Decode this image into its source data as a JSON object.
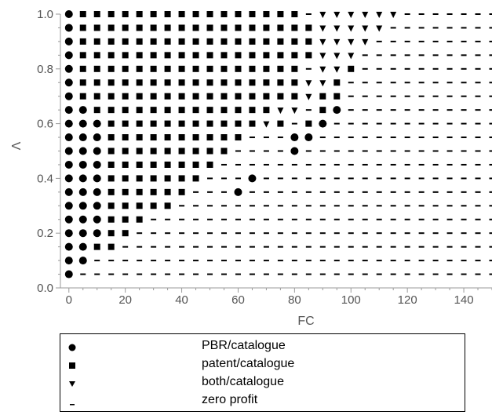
{
  "chart_data": {
    "type": "scatter",
    "xlabel": "FC",
    "ylabel": "Λ",
    "xlim": [
      -3,
      150
    ],
    "ylim": [
      0,
      1.0
    ],
    "xticks": [
      0,
      20,
      40,
      60,
      80,
      100,
      120,
      140
    ],
    "yticks": [
      0.0,
      0.2,
      0.4,
      0.6,
      0.8,
      1.0
    ],
    "ytick_labels": [
      "0.0",
      "0.2",
      "0.4",
      "0.6",
      "0.8",
      "1.0"
    ],
    "grid": false,
    "x_grid": [
      0,
      5,
      10,
      15,
      20,
      25,
      30,
      35,
      40,
      45,
      50,
      55,
      60,
      65,
      70,
      75,
      80,
      85,
      90,
      95,
      100,
      105,
      110,
      115,
      120,
      125,
      130,
      135,
      140,
      145,
      150
    ],
    "y_grid": [
      0.05,
      0.1,
      0.15,
      0.2,
      0.25,
      0.3,
      0.35,
      0.4,
      0.45,
      0.5,
      0.55,
      0.6,
      0.65,
      0.7,
      0.75,
      0.8,
      0.85,
      0.9,
      0.95,
      1.0
    ],
    "series": [
      {
        "name": "PBR/catalogue",
        "marker": "circle"
      },
      {
        "name": "patent/catalogue",
        "marker": "square"
      },
      {
        "name": "both/catalogue",
        "marker": "triangle-down"
      },
      {
        "name": "zero profit",
        "marker": "dash"
      }
    ],
    "regions": {
      "circle_max_x": [
        0,
        5,
        5,
        10,
        10,
        10,
        10,
        10,
        10,
        10,
        10,
        10,
        5,
        0,
        0,
        0,
        0,
        0,
        0,
        0
      ],
      "square_max_x": [
        -1,
        0,
        15,
        20,
        25,
        35,
        40,
        45,
        50,
        55,
        60,
        65,
        70,
        75,
        80,
        80,
        85,
        85,
        85,
        80
      ],
      "extra_circles": [
        {
          "x": 60,
          "y": 0.35
        },
        {
          "x": 65,
          "y": 0.4
        },
        {
          "x": 80,
          "y": 0.5
        },
        {
          "x": 80,
          "y": 0.55
        },
        {
          "x": 85,
          "y": 0.55
        },
        {
          "x": 90,
          "y": 0.6
        },
        {
          "x": 95,
          "y": 0.65
        }
      ],
      "extra_squares": [
        {
          "x": 75,
          "y": 0.6
        },
        {
          "x": 85,
          "y": 0.6
        },
        {
          "x": 90,
          "y": 0.65
        },
        {
          "x": 80,
          "y": 0.7
        },
        {
          "x": 90,
          "y": 0.7
        },
        {
          "x": 95,
          "y": 0.7
        },
        {
          "x": 95,
          "y": 0.75
        },
        {
          "x": 100,
          "y": 0.8
        }
      ],
      "triangles": [
        {
          "x": 70,
          "y": 0.6
        },
        {
          "x": 75,
          "y": 0.65
        },
        {
          "x": 80,
          "y": 0.65
        },
        {
          "x": 85,
          "y": 0.7
        },
        {
          "x": 85,
          "y": 0.75
        },
        {
          "x": 90,
          "y": 0.75
        },
        {
          "x": 90,
          "y": 0.8
        },
        {
          "x": 95,
          "y": 0.8
        },
        {
          "x": 90,
          "y": 0.85
        },
        {
          "x": 95,
          "y": 0.85
        },
        {
          "x": 100,
          "y": 0.85
        },
        {
          "x": 90,
          "y": 0.9
        },
        {
          "x": 95,
          "y": 0.9
        },
        {
          "x": 100,
          "y": 0.9
        },
        {
          "x": 105,
          "y": 0.9
        },
        {
          "x": 90,
          "y": 0.95
        },
        {
          "x": 95,
          "y": 0.95
        },
        {
          "x": 100,
          "y": 0.95
        },
        {
          "x": 105,
          "y": 0.95
        },
        {
          "x": 110,
          "y": 0.95
        },
        {
          "x": 90,
          "y": 1.0
        },
        {
          "x": 95,
          "y": 1.0
        },
        {
          "x": 100,
          "y": 1.0
        },
        {
          "x": 105,
          "y": 1.0
        },
        {
          "x": 110,
          "y": 1.0
        },
        {
          "x": 115,
          "y": 1.0
        }
      ]
    }
  },
  "legend": {
    "placement": "bottom",
    "items": [
      {
        "symbol": "circle",
        "label": "PBR/catalogue"
      },
      {
        "symbol": "square",
        "label": "patent/catalogue"
      },
      {
        "symbol": "triangle-down",
        "label": "both/catalogue"
      },
      {
        "symbol": "dash",
        "label": "zero profit"
      }
    ]
  }
}
